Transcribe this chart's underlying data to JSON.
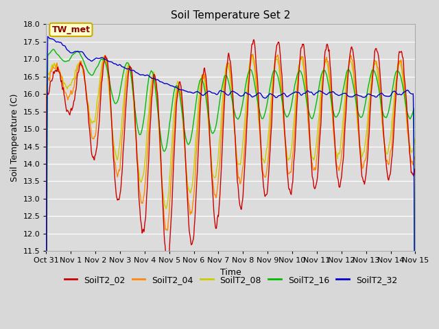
{
  "title": "Soil Temperature Set 2",
  "xlabel": "Time",
  "ylabel": "Soil Temperature (C)",
  "ylim": [
    11.5,
    18.0
  ],
  "yticks": [
    11.5,
    12.0,
    12.5,
    13.0,
    13.5,
    14.0,
    14.5,
    15.0,
    15.5,
    16.0,
    16.5,
    17.0,
    17.5,
    18.0
  ],
  "xtick_labels": [
    "Oct 31",
    "Nov 1",
    "Nov 2",
    "Nov 3",
    "Nov 4",
    "Nov 5",
    "Nov 6",
    "Nov 7",
    "Nov 8",
    "Nov 9",
    "Nov 10",
    "Nov 11",
    "Nov 12",
    "Nov 13",
    "Nov 14",
    "Nov 15"
  ],
  "colors": {
    "SoilT2_02": "#cc0000",
    "SoilT2_04": "#ff8800",
    "SoilT2_08": "#cccc00",
    "SoilT2_16": "#00bb00",
    "SoilT2_32": "#0000cc"
  },
  "bg_color": "#dcdcdc",
  "annotation_text": "TW_met",
  "annotation_color": "#8b0000",
  "annotation_bg": "#ffffcc",
  "annotation_border": "#ccaa00",
  "title_fontsize": 11,
  "label_fontsize": 9,
  "tick_fontsize": 8,
  "legend_fontsize": 9,
  "linewidth": 1.0
}
